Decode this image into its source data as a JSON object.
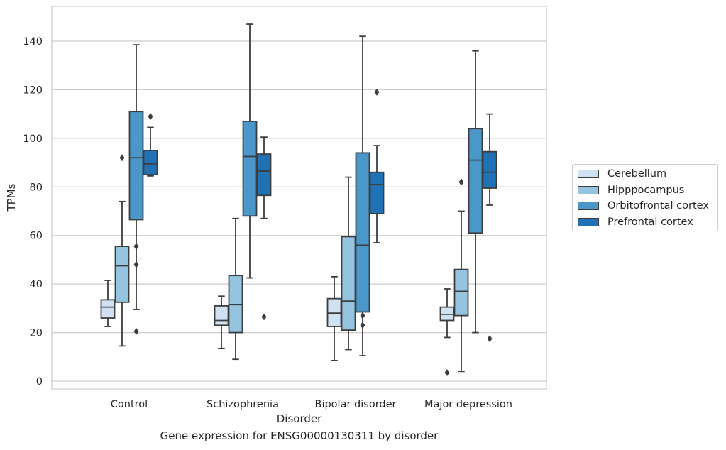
{
  "caption": "Gene expression for ENSG00000130311 by disorder",
  "chart_data": {
    "type": "box",
    "title": "",
    "xlabel": "Disorder",
    "ylabel": "TPMs",
    "ylim": [
      -3,
      154
    ],
    "yticks": [
      0,
      20,
      40,
      60,
      80,
      100,
      120,
      140
    ],
    "grid": "horizontal",
    "legend_position": "right",
    "categories": [
      "Control",
      "Schizophrenia",
      "Bipolar disorder",
      "Major depression"
    ],
    "series": [
      {
        "name": "Cerebellum",
        "color": "#d0e1f2",
        "boxes": [
          {
            "whislo": 22.5,
            "q1": 26,
            "med": 30.5,
            "q3": 33.5,
            "whishi": 41.5,
            "fliers": []
          },
          {
            "whislo": 13.5,
            "q1": 23,
            "med": 25,
            "q3": 31,
            "whishi": 35,
            "fliers": []
          },
          {
            "whislo": 8.5,
            "q1": 22.5,
            "med": 28,
            "q3": 34,
            "whishi": 43,
            "fliers": []
          },
          {
            "whislo": 18,
            "q1": 25,
            "med": 27.5,
            "q3": 30.5,
            "whishi": 38,
            "fliers": [
              3.5
            ]
          }
        ]
      },
      {
        "name": "Hipppocampus",
        "color": "#94c4df",
        "boxes": [
          {
            "whislo": 14.5,
            "q1": 32.5,
            "med": 47.5,
            "q3": 55.5,
            "whishi": 74,
            "fliers": [
              92
            ]
          },
          {
            "whislo": 9,
            "q1": 20,
            "med": 31.5,
            "q3": 43.5,
            "whishi": 67,
            "fliers": []
          },
          {
            "whislo": 13,
            "q1": 21,
            "med": 33,
            "q3": 59.5,
            "whishi": 84,
            "fliers": []
          },
          {
            "whislo": 4,
            "q1": 27,
            "med": 37,
            "q3": 46,
            "whishi": 70,
            "fliers": [
              82
            ]
          }
        ]
      },
      {
        "name": "Orbitofrontal cortex",
        "color": "#4a98c9",
        "boxes": [
          {
            "whislo": 29.5,
            "q1": 66.5,
            "med": 92,
            "q3": 111,
            "whishi": 138.5,
            "fliers": [
              20.5,
              48,
              55.5
            ]
          },
          {
            "whislo": 42.5,
            "q1": 68,
            "med": 92.5,
            "q3": 107,
            "whishi": 147,
            "fliers": []
          },
          {
            "whislo": 10.5,
            "q1": 28.5,
            "med": 56,
            "q3": 94,
            "whishi": 142,
            "fliers": [
              23,
              27
            ]
          },
          {
            "whislo": 20,
            "q1": 61,
            "med": 91,
            "q3": 104,
            "whishi": 136,
            "fliers": []
          }
        ]
      },
      {
        "name": "Prefrontal cortex",
        "color": "#2171b5",
        "boxes": [
          {
            "whislo": 84.5,
            "q1": 85,
            "med": 89.5,
            "q3": 95,
            "whishi": 104.5,
            "fliers": [
              109
            ]
          },
          {
            "whislo": 67,
            "q1": 76.5,
            "med": 86.5,
            "q3": 93.5,
            "whishi": 100.5,
            "fliers": [
              26.5
            ]
          },
          {
            "whislo": 57,
            "q1": 69,
            "med": 81,
            "q3": 86,
            "whishi": 97,
            "fliers": [
              119
            ]
          },
          {
            "whislo": 72.5,
            "q1": 79.5,
            "med": 86,
            "q3": 94.5,
            "whishi": 110,
            "fliers": [
              17.5
            ]
          }
        ]
      }
    ]
  }
}
